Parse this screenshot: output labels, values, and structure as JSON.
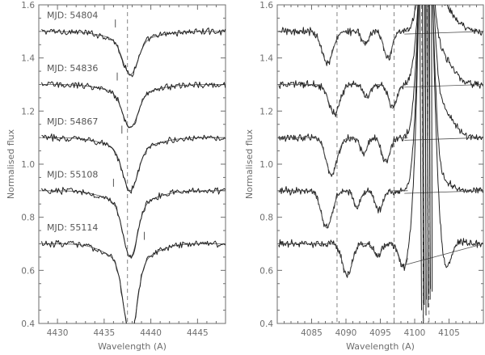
{
  "chart_data": [
    {
      "type": "line",
      "xlabel": "Wavelength (A)",
      "ylabel": "Normalised flux",
      "xlim": [
        4428,
        4448
      ],
      "ylim": [
        0.4,
        1.6
      ],
      "x_ticks": [
        "4430",
        "4435",
        "4440",
        "4445"
      ],
      "y_ticks": [
        "0.4",
        "0.6",
        "0.8",
        "1.0",
        "1.2",
        "1.4",
        "1.6"
      ],
      "reference_lines": [
        4437.5
      ],
      "line_center": 4437.8,
      "series": [
        {
          "name": "MJD: 54804",
          "offset": 1.5,
          "depth": 0.13,
          "width": 0.8,
          "marker_x": 4436.2
        },
        {
          "name": "MJD: 54836",
          "offset": 1.3,
          "depth": 0.13,
          "width": 0.8,
          "marker_x": 4436.4
        },
        {
          "name": "MJD: 54867",
          "offset": 1.1,
          "depth": 0.16,
          "width": 0.8,
          "marker_x": 4436.9
        },
        {
          "name": "MJD: 55108",
          "offset": 0.9,
          "depth": 0.2,
          "width": 0.75,
          "marker_x": 4436.0
        },
        {
          "name": "MJD: 55114",
          "offset": 0.7,
          "depth": 0.28,
          "width": 0.7,
          "marker_x": 4439.3
        }
      ]
    },
    {
      "type": "line",
      "xlabel": "Wavelength (A)",
      "ylabel": "Normalised flux",
      "xlim": [
        4080,
        4110
      ],
      "ylim": [
        0.4,
        1.6
      ],
      "x_ticks": [
        "4085",
        "4090",
        "4095",
        "4100",
        "4105"
      ],
      "y_ticks": [
        "0.4",
        "0.6",
        "0.8",
        "1.0",
        "1.2",
        "1.4",
        "1.6"
      ],
      "reference_lines": [
        4088.7,
        4097.0
      ],
      "series": [
        {
          "offset": 1.5,
          "lines": [
            [
              4087.3,
              0.12,
              0.8
            ],
            [
              4092.8,
              0.05,
              0.5
            ],
            [
              4096.1,
              0.1,
              0.6
            ]
          ]
        },
        {
          "offset": 1.3,
          "lines": [
            [
              4088.3,
              0.11,
              0.8
            ],
            [
              4093.0,
              0.05,
              0.5
            ],
            [
              4096.8,
              0.09,
              0.6
            ]
          ]
        },
        {
          "offset": 1.1,
          "lines": [
            [
              4087.9,
              0.14,
              0.8
            ],
            [
              4092.6,
              0.06,
              0.5
            ],
            [
              4095.8,
              0.09,
              0.6
            ]
          ]
        },
        {
          "offset": 0.9,
          "lines": [
            [
              4087.2,
              0.14,
              0.8
            ],
            [
              4091.6,
              0.06,
              0.5
            ],
            [
              4094.8,
              0.07,
              0.6
            ]
          ]
        },
        {
          "offset": 0.7,
          "lines": [
            [
              4090.2,
              0.12,
              0.7
            ],
            [
              4094.6,
              0.05,
              0.5
            ],
            [
              4098.4,
              0.09,
              0.6
            ],
            [
              4104.6,
              0.12,
              0.7
            ]
          ]
        }
      ]
    }
  ]
}
